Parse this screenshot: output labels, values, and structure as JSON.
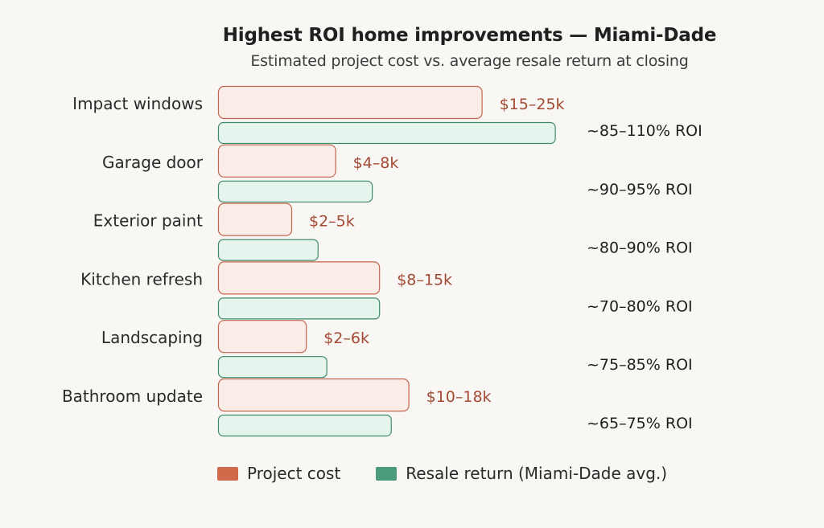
{
  "colors": {
    "cost_fill": "#faece6",
    "cost_stroke": "#c4664f",
    "cost_label": "#a44a34",
    "cost_swatch": "#cf6a4a",
    "return_fill": "#e6f4ee",
    "return_stroke": "#3f8a6a",
    "return_swatch": "#4a9a7c",
    "roi_label": "#1f1f1f",
    "category_label": "#2a2a2a"
  },
  "chart_data": {
    "type": "bar",
    "orientation": "horizontal",
    "title": "Highest ROI home improvements — Miami-Dade",
    "subtitle": "Estimated project cost vs. average resale return at closing",
    "categories": [
      "Impact windows",
      "Garage door",
      "Exterior paint",
      "Kitchen refresh",
      "Landscaping",
      "Bathroom update"
    ],
    "series": [
      {
        "name": "Project cost",
        "values": [
          18,
          8,
          5,
          11,
          6,
          13
        ],
        "labels": [
          "$15–25k",
          "$4–8k",
          "$2–5k",
          "$8–15k",
          "$2–6k",
          "$10–18k"
        ]
      },
      {
        "name": "Resale return (Miami-Dade avg.)",
        "values": [
          23,
          10.5,
          6.8,
          11,
          7.4,
          11.8
        ],
        "labels": [
          "~85–110% ROI",
          "~90–95% ROI",
          "~80–90% ROI",
          "~70–80% ROI",
          "~75–85% ROI",
          "~65–75% ROI"
        ]
      }
    ],
    "legend_position": "bottom-left",
    "grid": false
  },
  "legend": [
    {
      "label": "Project cost",
      "color": "#cf6a4a"
    },
    {
      "label": "Resale return (Miami-Dade avg.)",
      "color": "#4a9a7c"
    }
  ]
}
